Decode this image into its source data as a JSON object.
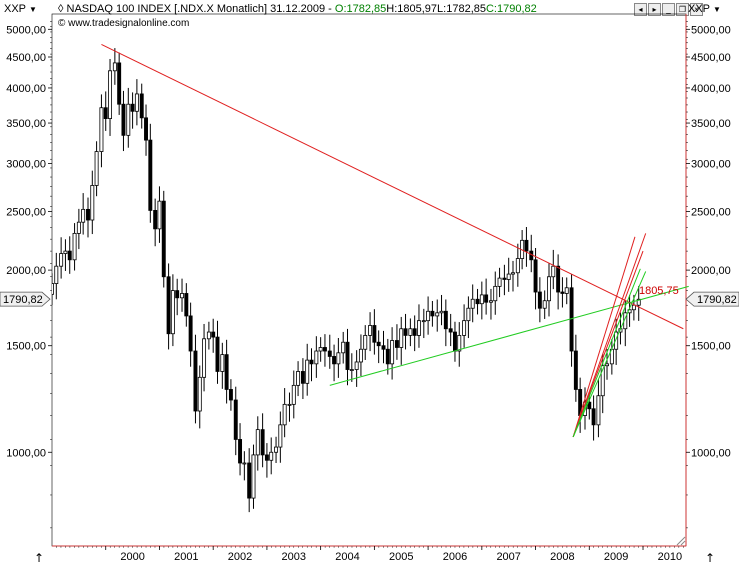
{
  "header": {
    "symbol_left": "XXP",
    "symbol_right": "XXP",
    "title_prefix": "NASDAQ 100 INDEX [.NDX.X  Monatlich] 31.12.2009 - ",
    "open": "O:1782,85",
    "high": "H:1805,97",
    "low": "L:1782,85",
    "close": "C:1790,82",
    "copyright": "© www.tradesignalonline.com"
  },
  "colors": {
    "trend_red": "#e02020",
    "trend_green": "#22cc22",
    "candle": "#000000",
    "border": "#cc3333",
    "annotation": "#cc0000"
  },
  "chart_data": {
    "type": "candlestick",
    "title": "NASDAQ 100 INDEX [.NDX.X  Monatlich] 31.12.2009",
    "yscale": "log",
    "ylim": [
      700,
      5300
    ],
    "y_ticks": [
      1000,
      1500,
      2000,
      2500,
      3000,
      3500,
      4000,
      4500,
      5000
    ],
    "y_tick_labels": [
      "1000,00",
      "1500,00",
      "2000,00",
      "2500,00",
      "3000,00",
      "3500,00",
      "4000,00",
      "4500,00",
      "5000,00"
    ],
    "x_labels": [
      "2000",
      "2001",
      "2002",
      "2003",
      "2004",
      "2005",
      "2006",
      "2007",
      "2008",
      "2009",
      "2010"
    ],
    "xlim": [
      1999.0,
      2010.8
    ],
    "last_price": 1790.82,
    "last_price_label": "1790,82",
    "annotation": {
      "text": "1805,75",
      "x": 2009.85,
      "y": 1805.75
    },
    "close_series": [
      {
        "x": 1999.0,
        "y": 1900
      },
      {
        "x": 1999.08,
        "y": 2030
      },
      {
        "x": 1999.17,
        "y": 2130
      },
      {
        "x": 1999.25,
        "y": 2150
      },
      {
        "x": 1999.33,
        "y": 2080
      },
      {
        "x": 1999.42,
        "y": 2300
      },
      {
        "x": 1999.5,
        "y": 2400
      },
      {
        "x": 1999.58,
        "y": 2520
      },
      {
        "x": 1999.67,
        "y": 2420
      },
      {
        "x": 1999.75,
        "y": 2760
      },
      {
        "x": 1999.83,
        "y": 3140
      },
      {
        "x": 1999.92,
        "y": 3710
      },
      {
        "x": 2000.0,
        "y": 3560
      },
      {
        "x": 2000.08,
        "y": 4270
      },
      {
        "x": 2000.17,
        "y": 4400
      },
      {
        "x": 2000.25,
        "y": 3760
      },
      {
        "x": 2000.33,
        "y": 3340
      },
      {
        "x": 2000.42,
        "y": 3760
      },
      {
        "x": 2000.5,
        "y": 3660
      },
      {
        "x": 2000.58,
        "y": 3910
      },
      {
        "x": 2000.67,
        "y": 3570
      },
      {
        "x": 2000.75,
        "y": 3280
      },
      {
        "x": 2000.83,
        "y": 2510
      },
      {
        "x": 2000.92,
        "y": 2340
      },
      {
        "x": 2001.0,
        "y": 2600
      },
      {
        "x": 2001.08,
        "y": 1950
      },
      {
        "x": 2001.17,
        "y": 1570
      },
      {
        "x": 2001.25,
        "y": 1850
      },
      {
        "x": 2001.33,
        "y": 1800
      },
      {
        "x": 2001.42,
        "y": 1830
      },
      {
        "x": 2001.5,
        "y": 1680
      },
      {
        "x": 2001.58,
        "y": 1470
      },
      {
        "x": 2001.67,
        "y": 1170
      },
      {
        "x": 2001.75,
        "y": 1330
      },
      {
        "x": 2001.83,
        "y": 1540
      },
      {
        "x": 2001.92,
        "y": 1580
      },
      {
        "x": 2002.0,
        "y": 1550
      },
      {
        "x": 2002.08,
        "y": 1360
      },
      {
        "x": 2002.17,
        "y": 1450
      },
      {
        "x": 2002.25,
        "y": 1270
      },
      {
        "x": 2002.33,
        "y": 1220
      },
      {
        "x": 2002.42,
        "y": 1050
      },
      {
        "x": 2002.5,
        "y": 960
      },
      {
        "x": 2002.58,
        "y": 960
      },
      {
        "x": 2002.67,
        "y": 840
      },
      {
        "x": 2002.75,
        "y": 990
      },
      {
        "x": 2002.83,
        "y": 1090
      },
      {
        "x": 2002.92,
        "y": 990
      },
      {
        "x": 2003.0,
        "y": 970
      },
      {
        "x": 2003.08,
        "y": 1000
      },
      {
        "x": 2003.17,
        "y": 1020
      },
      {
        "x": 2003.25,
        "y": 1110
      },
      {
        "x": 2003.33,
        "y": 1200
      },
      {
        "x": 2003.42,
        "y": 1200
      },
      {
        "x": 2003.5,
        "y": 1290
      },
      {
        "x": 2003.58,
        "y": 1360
      },
      {
        "x": 2003.67,
        "y": 1300
      },
      {
        "x": 2003.75,
        "y": 1420
      },
      {
        "x": 2003.83,
        "y": 1400
      },
      {
        "x": 2003.92,
        "y": 1470
      },
      {
        "x": 2004.0,
        "y": 1490
      },
      {
        "x": 2004.08,
        "y": 1470
      },
      {
        "x": 2004.17,
        "y": 1440
      },
      {
        "x": 2004.25,
        "y": 1400
      },
      {
        "x": 2004.33,
        "y": 1460
      },
      {
        "x": 2004.42,
        "y": 1520
      },
      {
        "x": 2004.5,
        "y": 1370
      },
      {
        "x": 2004.58,
        "y": 1370
      },
      {
        "x": 2004.67,
        "y": 1410
      },
      {
        "x": 2004.75,
        "y": 1480
      },
      {
        "x": 2004.83,
        "y": 1560
      },
      {
        "x": 2004.92,
        "y": 1620
      },
      {
        "x": 2005.0,
        "y": 1520
      },
      {
        "x": 2005.08,
        "y": 1500
      },
      {
        "x": 2005.17,
        "y": 1480
      },
      {
        "x": 2005.25,
        "y": 1400
      },
      {
        "x": 2005.33,
        "y": 1530
      },
      {
        "x": 2005.42,
        "y": 1490
      },
      {
        "x": 2005.5,
        "y": 1600
      },
      {
        "x": 2005.58,
        "y": 1560
      },
      {
        "x": 2005.67,
        "y": 1600
      },
      {
        "x": 2005.75,
        "y": 1560
      },
      {
        "x": 2005.83,
        "y": 1650
      },
      {
        "x": 2005.92,
        "y": 1650
      },
      {
        "x": 2006.0,
        "y": 1710
      },
      {
        "x": 2006.08,
        "y": 1680
      },
      {
        "x": 2006.17,
        "y": 1700
      },
      {
        "x": 2006.25,
        "y": 1710
      },
      {
        "x": 2006.33,
        "y": 1600
      },
      {
        "x": 2006.42,
        "y": 1580
      },
      {
        "x": 2006.5,
        "y": 1470
      },
      {
        "x": 2006.58,
        "y": 1560
      },
      {
        "x": 2006.67,
        "y": 1650
      },
      {
        "x": 2006.75,
        "y": 1730
      },
      {
        "x": 2006.83,
        "y": 1790
      },
      {
        "x": 2006.92,
        "y": 1760
      },
      {
        "x": 2007.0,
        "y": 1820
      },
      {
        "x": 2007.08,
        "y": 1770
      },
      {
        "x": 2007.17,
        "y": 1780
      },
      {
        "x": 2007.25,
        "y": 1880
      },
      {
        "x": 2007.33,
        "y": 1940
      },
      {
        "x": 2007.42,
        "y": 1930
      },
      {
        "x": 2007.5,
        "y": 1970
      },
      {
        "x": 2007.58,
        "y": 1980
      },
      {
        "x": 2007.67,
        "y": 2090
      },
      {
        "x": 2007.75,
        "y": 2240
      },
      {
        "x": 2007.83,
        "y": 2150
      },
      {
        "x": 2007.92,
        "y": 2080
      },
      {
        "x": 2008.0,
        "y": 1840
      },
      {
        "x": 2008.08,
        "y": 1730
      },
      {
        "x": 2008.17,
        "y": 1780
      },
      {
        "x": 2008.25,
        "y": 1950
      },
      {
        "x": 2008.33,
        "y": 2030
      },
      {
        "x": 2008.42,
        "y": 1840
      },
      {
        "x": 2008.5,
        "y": 1830
      },
      {
        "x": 2008.58,
        "y": 1870
      },
      {
        "x": 2008.67,
        "y": 1470
      },
      {
        "x": 2008.75,
        "y": 1270
      },
      {
        "x": 2008.83,
        "y": 1150
      },
      {
        "x": 2008.92,
        "y": 1210
      },
      {
        "x": 2009.0,
        "y": 1180
      },
      {
        "x": 2009.08,
        "y": 1110
      },
      {
        "x": 2009.17,
        "y": 1240
      },
      {
        "x": 2009.25,
        "y": 1390
      },
      {
        "x": 2009.33,
        "y": 1400
      },
      {
        "x": 2009.42,
        "y": 1480
      },
      {
        "x": 2009.5,
        "y": 1580
      },
      {
        "x": 2009.58,
        "y": 1600
      },
      {
        "x": 2009.67,
        "y": 1700
      },
      {
        "x": 2009.75,
        "y": 1720
      },
      {
        "x": 2009.83,
        "y": 1750
      },
      {
        "x": 2009.92,
        "y": 1790
      }
    ],
    "trend_lines": [
      {
        "color": "red",
        "x1": 1999.92,
        "y1": 4720,
        "x2": 2010.75,
        "y2": 1600
      },
      {
        "color": "green",
        "x1": 2004.17,
        "y1": 1290,
        "x2": 2010.85,
        "y2": 1880
      },
      {
        "color": "red",
        "x1": 2008.7,
        "y1": 1060,
        "x2": 2009.85,
        "y2": 2270
      },
      {
        "color": "red",
        "x1": 2008.7,
        "y1": 1060,
        "x2": 2010.05,
        "y2": 2300
      },
      {
        "color": "red",
        "x1": 2008.7,
        "y1": 1060,
        "x2": 2010.0,
        "y2": 2150
      },
      {
        "color": "green",
        "x1": 2008.7,
        "y1": 1060,
        "x2": 2009.95,
        "y2": 2010
      },
      {
        "color": "green",
        "x1": 2008.7,
        "y1": 1060,
        "x2": 2010.05,
        "y2": 1990
      }
    ]
  }
}
